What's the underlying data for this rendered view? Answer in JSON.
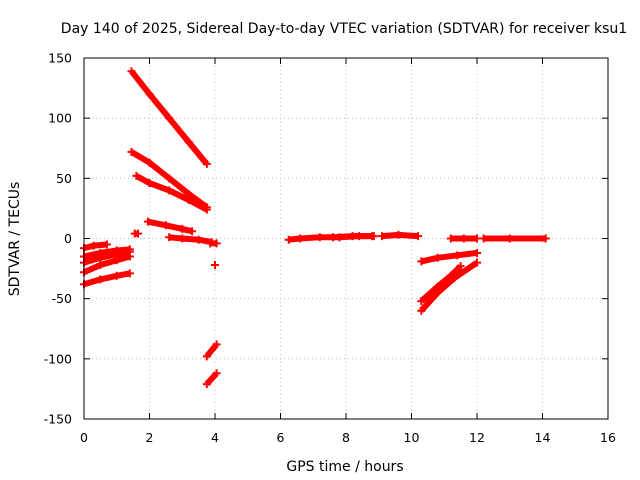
{
  "chart_data": {
    "type": "scatter",
    "title": "Day 140 of 2025, Sidereal Day-to-day VTEC variation (SDTVAR) for receiver ksu1",
    "xlabel": "GPS time / hours",
    "ylabel": "SDTVAR / TECUs",
    "xlim": [
      0,
      16
    ],
    "ylim": [
      -150,
      150
    ],
    "xticks": [
      0,
      2,
      4,
      6,
      8,
      10,
      12,
      14,
      16
    ],
    "yticks": [
      -150,
      -100,
      -50,
      0,
      50,
      100,
      150
    ],
    "xtick_labels": [
      "0",
      "2",
      "4",
      "6",
      "8",
      "10",
      "12",
      "14",
      "16"
    ],
    "ytick_labels": [
      "-150",
      "-100",
      "-50",
      "0",
      "50",
      "100",
      "150"
    ],
    "grid": true,
    "color": "#ff0000",
    "series": [
      {
        "name": "arc-1",
        "x": [
          0.0,
          0.3,
          0.7
        ],
        "y": [
          -8,
          -6,
          -5
        ]
      },
      {
        "name": "arc-2",
        "x": [
          0.0,
          0.5,
          1.0,
          1.4
        ],
        "y": [
          -15,
          -12,
          -10,
          -9
        ]
      },
      {
        "name": "arc-3",
        "x": [
          0.0,
          0.5,
          1.0,
          1.4
        ],
        "y": [
          -20,
          -16,
          -13,
          -11
        ]
      },
      {
        "name": "arc-4",
        "x": [
          0.0,
          0.5,
          1.0,
          1.4
        ],
        "y": [
          -28,
          -22,
          -18,
          -15
        ]
      },
      {
        "name": "arc-5",
        "x": [
          0.0,
          0.5,
          1.0,
          1.4
        ],
        "y": [
          -38,
          -34,
          -31,
          -29
        ]
      },
      {
        "name": "arc-6",
        "x": [
          1.55,
          1.65
        ],
        "y": [
          4,
          4
        ]
      },
      {
        "name": "arc-7",
        "x": [
          1.45,
          2.0,
          2.6,
          3.2,
          3.75
        ],
        "y": [
          139,
          120,
          100,
          80,
          62
        ]
      },
      {
        "name": "arc-8",
        "x": [
          1.45,
          2.0,
          2.6,
          3.2,
          3.75
        ],
        "y": [
          72,
          63,
          50,
          37,
          26
        ]
      },
      {
        "name": "arc-9",
        "x": [
          1.6,
          2.0,
          2.6,
          3.2,
          3.75
        ],
        "y": [
          52,
          46,
          40,
          32,
          24
        ]
      },
      {
        "name": "arc-10",
        "x": [
          1.95,
          2.5,
          3.0,
          3.3
        ],
        "y": [
          14,
          11,
          8,
          6
        ]
      },
      {
        "name": "arc-11",
        "x": [
          2.6,
          3.0,
          3.5,
          3.9
        ],
        "y": [
          1,
          0,
          -1,
          -3
        ]
      },
      {
        "name": "arc-12",
        "x": [
          3.85,
          4.05
        ],
        "y": [
          -4,
          -4
        ]
      },
      {
        "name": "arc-13",
        "x": [
          4.0
        ],
        "y": [
          -22
        ]
      },
      {
        "name": "arc-14",
        "x": [
          3.75,
          4.05
        ],
        "y": [
          -98,
          -88
        ]
      },
      {
        "name": "arc-15",
        "x": [
          3.75,
          4.05
        ],
        "y": [
          -121,
          -112
        ]
      },
      {
        "name": "arc-16",
        "x": [
          6.25,
          6.6,
          7.2,
          7.8,
          8.4,
          8.8
        ],
        "y": [
          -1,
          0,
          1,
          1,
          2,
          2
        ]
      },
      {
        "name": "arc-17",
        "x": [
          7.6,
          8.2,
          8.85
        ],
        "y": [
          1,
          2,
          2
        ]
      },
      {
        "name": "arc-18",
        "x": [
          9.1,
          9.6,
          10.2
        ],
        "y": [
          2,
          3,
          2
        ]
      },
      {
        "name": "arc-19",
        "x": [
          10.3,
          10.8,
          11.4,
          12.0
        ],
        "y": [
          -19,
          -16,
          -14,
          -12
        ]
      },
      {
        "name": "arc-20",
        "x": [
          10.3,
          10.8,
          11.3,
          12.0
        ],
        "y": [
          -60,
          -45,
          -33,
          -20
        ]
      },
      {
        "name": "arc-21",
        "x": [
          10.3,
          10.8,
          11.2,
          11.5
        ],
        "y": [
          -52,
          -40,
          -31,
          -23
        ]
      },
      {
        "name": "arc-22",
        "x": [
          11.2,
          11.6,
          12.0
        ],
        "y": [
          0,
          0,
          0
        ]
      },
      {
        "name": "arc-23",
        "x": [
          12.2,
          13.0,
          14.1
        ],
        "y": [
          0,
          0,
          0
        ]
      }
    ]
  }
}
